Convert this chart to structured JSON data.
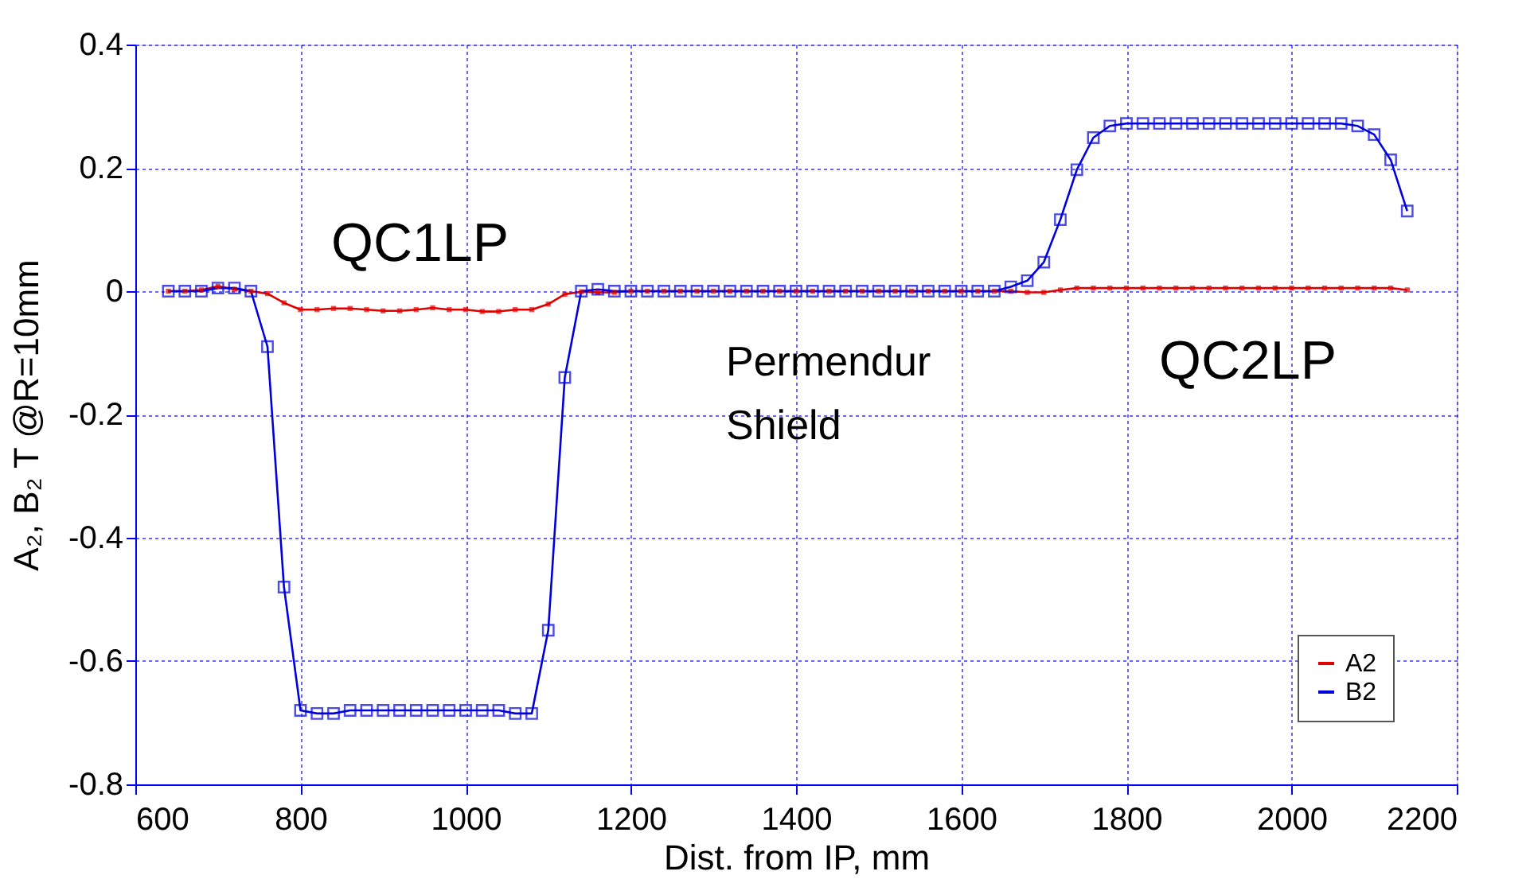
{
  "chart_data": {
    "type": "line",
    "xlabel": "Dist. from IP, mm",
    "ylabel": "A₂, B₂   T  @R=10mm",
    "x": [
      640,
      660,
      680,
      700,
      720,
      740,
      760,
      780,
      800,
      820,
      840,
      860,
      880,
      900,
      920,
      940,
      960,
      980,
      1000,
      1020,
      1040,
      1060,
      1080,
      1100,
      1120,
      1140,
      1160,
      1180,
      1200,
      1220,
      1240,
      1260,
      1280,
      1300,
      1320,
      1340,
      1360,
      1380,
      1400,
      1420,
      1440,
      1460,
      1480,
      1500,
      1520,
      1540,
      1560,
      1580,
      1600,
      1620,
      1640,
      1660,
      1680,
      1700,
      1720,
      1740,
      1760,
      1780,
      1800,
      1820,
      1840,
      1860,
      1880,
      1900,
      1920,
      1940,
      1960,
      1980,
      2000,
      2020,
      2040,
      2060,
      2080,
      2100,
      2120,
      2140
    ],
    "series": [
      {
        "name": "A2",
        "color": "#e00000",
        "marker": "square",
        "values": [
          0,
          0,
          0.002,
          0.008,
          0.003,
          0,
          -0.004,
          -0.019,
          -0.03,
          -0.03,
          -0.028,
          -0.028,
          -0.03,
          -0.032,
          -0.032,
          -0.03,
          -0.027,
          -0.03,
          -0.03,
          -0.033,
          -0.033,
          -0.03,
          -0.03,
          -0.021,
          -0.005,
          -0.001,
          -0.002,
          -0.002,
          0,
          0,
          0,
          0,
          0,
          0,
          0,
          0,
          0,
          0,
          0,
          0,
          0,
          0,
          0,
          0,
          0,
          0,
          0,
          0,
          0,
          0,
          0,
          0,
          -0.002,
          -0.002,
          0.002,
          0.005,
          0.005,
          0.005,
          0.005,
          0.005,
          0.005,
          0.005,
          0.005,
          0.005,
          0.005,
          0.005,
          0.005,
          0.005,
          0.005,
          0.005,
          0.005,
          0.005,
          0.005,
          0.005,
          0.005,
          0.002
        ]
      },
      {
        "name": "B2",
        "color": "#0000dd",
        "marker": "square",
        "values": [
          0,
          0,
          0,
          0.005,
          0.005,
          0,
          -0.09,
          -0.48,
          -0.68,
          -0.685,
          -0.685,
          -0.68,
          -0.68,
          -0.68,
          -0.68,
          -0.68,
          -0.68,
          -0.68,
          -0.68,
          -0.68,
          -0.68,
          -0.685,
          -0.685,
          -0.55,
          -0.14,
          0,
          0.003,
          0,
          0,
          0,
          0,
          0,
          0,
          0,
          0,
          0,
          0,
          0,
          0,
          0,
          0,
          0,
          0,
          0,
          0,
          0,
          0,
          0,
          0,
          0,
          0,
          0.007,
          0.017,
          0.047,
          0.116,
          0.197,
          0.249,
          0.268,
          0.272,
          0.272,
          0.272,
          0.272,
          0.272,
          0.272,
          0.272,
          0.272,
          0.272,
          0.272,
          0.272,
          0.272,
          0.272,
          0.272,
          0.268,
          0.254,
          0.213,
          0.13
        ]
      }
    ],
    "xlim": [
      600,
      2200
    ],
    "xticks": [
      600,
      800,
      1000,
      1200,
      1400,
      1600,
      1800,
      2000,
      2200
    ],
    "ylim": [
      -0.8,
      0.4
    ],
    "yticks": [
      -0.8,
      -0.6,
      -0.4,
      -0.2,
      0,
      0.2,
      0.4
    ],
    "grid": true,
    "legend": "bottom right",
    "line_style": "solid",
    "annotations": [
      "QC1LP",
      "Permendur\nShield",
      "QC2LP"
    ]
  }
}
